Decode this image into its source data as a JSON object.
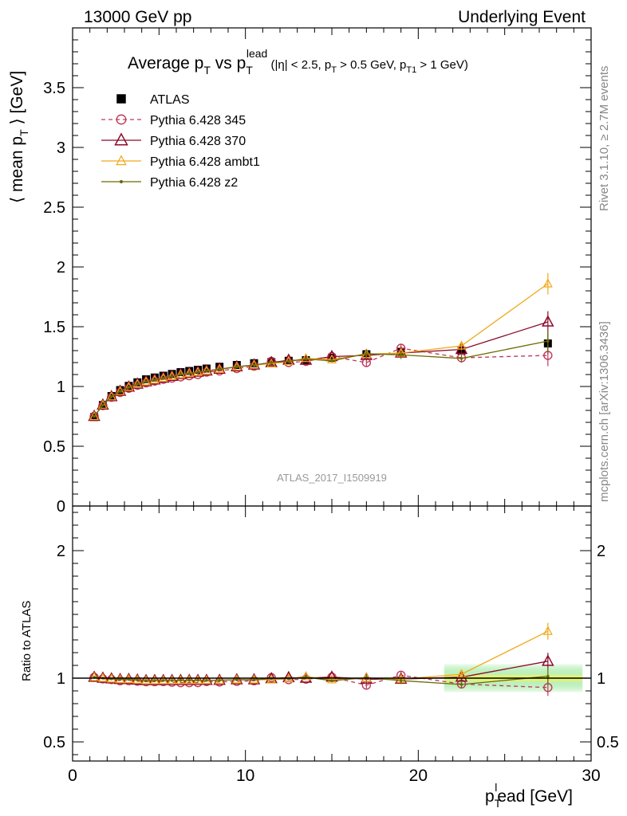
{
  "header": {
    "left": "13000 GeV pp",
    "right": "Underlying Event",
    "analysis": "ATLAS_2017_I1509919",
    "side_top": "Rivet 3.1.10, ≥ 2.7M events",
    "side_bottom": "mcplots.cern.ch [arXiv:1306.3436]"
  },
  "colors": {
    "ATLAS": "#000000",
    "p345": "#c0395a",
    "p370": "#8c0a2a",
    "ambt1": "#f0a81a",
    "z2": "#6b6b00",
    "band_inner": "#f2f25a",
    "band_outer": "#b4f0b4"
  },
  "chart_data": {
    "type": "line",
    "title_parts": {
      "t1": "Average p",
      "t1_sub": "T",
      "t2": " vs p",
      "t2_sub": "T",
      "t2_sup": "lead",
      "t3": " (|η| < 2.5, p",
      "t3_sub": "T",
      "t4": " > 0.5 GeV, p",
      "t4_sub": "T1",
      "t5": " > 1 GeV)"
    },
    "ylabel_parts": {
      "a": "⟨ mean p",
      "sub": "T",
      "b": " ⟩ [GeV]"
    },
    "xlabel_parts": {
      "a": "p",
      "sub": "T",
      "sup": "l",
      "b": "ead [GeV]"
    },
    "ratio_ylabel": "Ratio to ATLAS",
    "xlim": [
      0,
      30
    ],
    "ylim": [
      0,
      4
    ],
    "ratio_ylim": [
      0.35,
      2.35
    ],
    "main_yticks": [
      "0",
      "0.5",
      "1",
      "1.5",
      "2",
      "2.5",
      "3",
      "3.5"
    ],
    "ratio_yticks": [
      "0.5",
      "1",
      "2"
    ],
    "xticks": [
      "0",
      "10",
      "20",
      "30"
    ],
    "legend": [
      "ATLAS",
      "Pythia 6.428 345",
      "Pythia 6.428 370",
      "Pythia 6.428 ambt1",
      "Pythia 6.428 z2"
    ],
    "x": [
      1.25,
      1.75,
      2.25,
      2.75,
      3.25,
      3.75,
      4.25,
      4.75,
      5.25,
      5.75,
      6.25,
      6.75,
      7.25,
      7.75,
      8.5,
      9.5,
      10.5,
      11.5,
      12.5,
      13.5,
      15,
      17,
      19,
      22.5,
      27.5
    ],
    "ratio_band": [
      0.03,
      0.035,
      0.04,
      0.045,
      0.05,
      0.055,
      0.06,
      0.065,
      0.07,
      0.075
    ],
    "series": [
      {
        "name": "ATLAS",
        "marker": "square",
        "values": [
          0.745,
          0.845,
          0.92,
          0.97,
          1.005,
          1.035,
          1.06,
          1.075,
          1.09,
          1.105,
          1.12,
          1.13,
          1.14,
          1.15,
          1.165,
          1.18,
          1.195,
          1.205,
          1.215,
          1.22,
          1.24,
          1.27,
          1.29,
          1.3,
          1.36
        ]
      },
      {
        "name": "Pythia 6.428 345",
        "marker": "circle",
        "values": [
          0.75,
          0.84,
          0.91,
          0.95,
          0.985,
          1.01,
          1.03,
          1.045,
          1.06,
          1.07,
          1.08,
          1.09,
          1.1,
          1.12,
          1.13,
          1.15,
          1.17,
          1.21,
          1.2,
          1.21,
          1.25,
          1.2,
          1.32,
          1.24,
          1.26
        ]
      },
      {
        "name": "Pythia 6.428 370",
        "marker": "triangle",
        "values": [
          0.75,
          0.845,
          0.915,
          0.96,
          0.995,
          1.02,
          1.04,
          1.055,
          1.07,
          1.085,
          1.1,
          1.11,
          1.12,
          1.13,
          1.145,
          1.165,
          1.18,
          1.2,
          1.22,
          1.22,
          1.25,
          1.26,
          1.28,
          1.31,
          1.54
        ]
      },
      {
        "name": "Pythia 6.428 ambt1",
        "marker": "triangle-light",
        "values": [
          0.75,
          0.845,
          0.915,
          0.96,
          0.995,
          1.02,
          1.04,
          1.055,
          1.07,
          1.085,
          1.1,
          1.11,
          1.12,
          1.13,
          1.145,
          1.165,
          1.18,
          1.19,
          1.21,
          1.235,
          1.225,
          1.27,
          1.28,
          1.34,
          1.86
        ]
      },
      {
        "name": "Pythia 6.428 z2",
        "marker": "dot",
        "values": [
          0.75,
          0.845,
          0.915,
          0.96,
          0.995,
          1.02,
          1.04,
          1.055,
          1.07,
          1.085,
          1.1,
          1.11,
          1.12,
          1.13,
          1.145,
          1.165,
          1.18,
          1.2,
          1.21,
          1.23,
          1.215,
          1.275,
          1.265,
          1.235,
          1.38
        ]
      }
    ]
  }
}
